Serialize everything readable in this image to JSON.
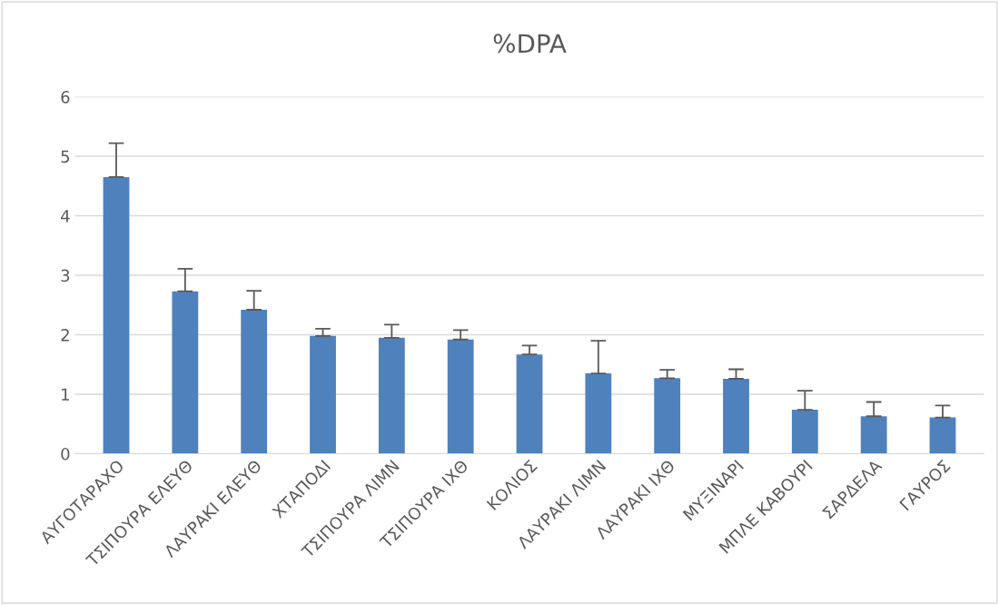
{
  "chart_data": {
    "type": "bar",
    "title": "%DPA",
    "categories": [
      "ΑΥΓΟΤΑΡΑΧΟ",
      "ΤΣΙΠΟΥΡΑ ΕΛΕΥΘ",
      "ΛΑΥΡΑΚΙ ΕΛΕΥΘ",
      "ΧΤΑΠΟΔΙ",
      "ΤΣΙΠΟΥΡΑ ΛΙΜΝ",
      "ΤΣΙΠΟΥΡΑ ΙΧΘ",
      "ΚΟΛΙΟΣ",
      "ΛΑΥΡΑΚΙ ΛΙΜΝ",
      "ΛΑΥΡΑΚΙ ΙΧΘ",
      "ΜΥΞΙΝΑΡΙ",
      "ΜΠΛΕ ΚΑΒΟΥΡΙ",
      "ΣΑΡΔΕΛΑ",
      "ΓΑΥΡΟΣ"
    ],
    "values": [
      4.65,
      2.73,
      2.42,
      1.98,
      1.95,
      1.92,
      1.67,
      1.35,
      1.27,
      1.26,
      0.74,
      0.63,
      0.61
    ],
    "errors": [
      [
        4.65,
        5.22
      ],
      [
        2.73,
        3.11
      ],
      [
        2.42,
        2.74
      ],
      [
        1.98,
        2.1
      ],
      [
        1.95,
        2.17
      ],
      [
        1.92,
        2.08
      ],
      [
        1.67,
        1.82
      ],
      [
        1.35,
        1.9
      ],
      [
        1.27,
        1.41
      ],
      [
        1.26,
        1.42
      ],
      [
        0.74,
        1.06
      ],
      [
        0.63,
        0.87
      ],
      [
        0.61,
        0.81
      ]
    ],
    "color": "#4f81bd",
    "ylim": [
      0,
      6
    ],
    "yticks": [
      0,
      1,
      2,
      3,
      4,
      5,
      6
    ],
    "grid": "y"
  }
}
